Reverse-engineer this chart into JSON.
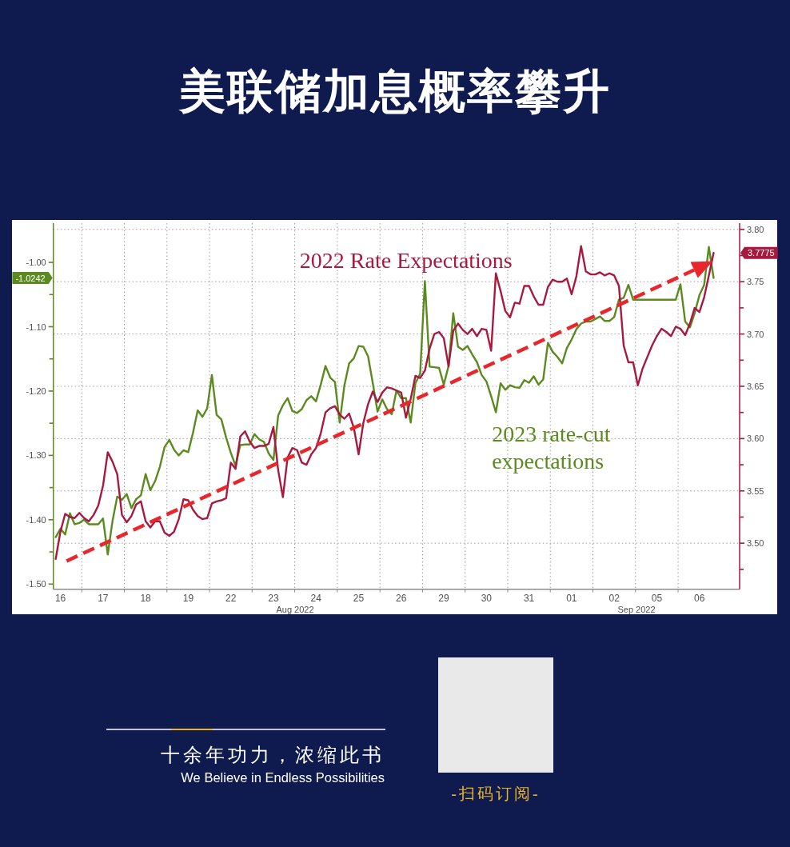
{
  "chart_data": {
    "type": "line",
    "title": "美联储加息概率攀升",
    "categories": [
      null,
      "16",
      null,
      null,
      null,
      null,
      null,
      null,
      null,
      null,
      "17",
      null,
      null,
      null,
      null,
      null,
      null,
      null,
      null,
      "18",
      null,
      null,
      null,
      null,
      null,
      null,
      null,
      null,
      "19",
      null,
      null,
      null,
      null,
      null,
      null,
      null,
      null,
      "22",
      null,
      null,
      null,
      null,
      null,
      null,
      null,
      null,
      "23",
      null,
      null,
      null,
      null,
      null,
      null,
      null,
      null,
      "24",
      null,
      null,
      null,
      null,
      null,
      null,
      null,
      null,
      "25",
      null,
      null,
      null,
      null,
      null,
      null,
      null,
      null,
      "26",
      null,
      null,
      null,
      null,
      null,
      null,
      null,
      null,
      "29",
      null,
      null,
      null,
      null,
      null,
      null,
      null,
      null,
      "30",
      null,
      null,
      null,
      null,
      null,
      null,
      null,
      null,
      "31",
      null,
      null,
      null,
      null,
      null,
      null,
      null,
      null,
      "01",
      null,
      null,
      null,
      null,
      null,
      null,
      null,
      null,
      "02",
      null,
      null,
      null,
      null,
      null,
      null,
      null,
      null,
      "05",
      null,
      null,
      null,
      null,
      null,
      null,
      null,
      null,
      "06",
      null,
      null,
      null,
      null,
      null,
      null,
      null,
      null
    ],
    "ylim": [
      -1.508,
      -0.939
    ],
    "yticks": [
      {
        "value": -1.5,
        "label": "-1.50"
      },
      {
        "value": -1.45,
        "label": null
      },
      {
        "value": -1.4,
        "label": "-1.40"
      },
      {
        "value": -1.35,
        "label": null
      },
      {
        "value": -1.3,
        "label": "-1.30"
      },
      {
        "value": -1.25,
        "label": null
      },
      {
        "value": -1.2,
        "label": "-1.20"
      },
      {
        "value": -1.15,
        "label": null
      },
      {
        "value": -1.1,
        "label": "-1.10"
      },
      {
        "value": -1.05,
        "label": null
      },
      {
        "value": -1.0,
        "label": "-1.00"
      }
    ],
    "y2lim": [
      3.456,
      3.806
    ],
    "y2ticks": [
      {
        "value": 3.475,
        "label": null
      },
      {
        "value": 3.5,
        "label": "3.50"
      },
      {
        "value": 3.525,
        "label": null
      },
      3.55,
      {
        "value": 3.575,
        "label": null
      },
      {
        "value": 3.6,
        "label": "3.60"
      },
      {
        "value": 3.625,
        "label": null
      },
      3.65,
      {
        "value": 3.675,
        "label": null
      },
      {
        "value": 3.7,
        "label": "3.70"
      },
      {
        "value": 3.725,
        "label": null
      },
      3.75,
      {
        "value": 3.775,
        "label": null
      },
      {
        "value": 3.8,
        "label": "3.80"
      }
    ],
    "grid": true,
    "series": [
      {
        "name": "2023 rate-cut expectations",
        "color": "#5b8a1e",
        "values": [
          -1.427,
          -1.414,
          -1.423,
          -1.39,
          -1.407,
          -1.405,
          -1.4,
          -1.407,
          -1.407,
          -1.407,
          -1.398,
          -1.454,
          -1.402,
          -1.364,
          -1.369,
          -1.36,
          -1.382,
          -1.368,
          -1.362,
          -1.329,
          -1.354,
          -1.34,
          -1.318,
          -1.287,
          -1.276,
          -1.291,
          -1.3,
          -1.292,
          -1.295,
          -1.265,
          -1.23,
          -1.24,
          -1.227,
          -1.175,
          -1.237,
          -1.244,
          -1.272,
          -1.296,
          -1.316,
          -1.284,
          -1.283,
          -1.283,
          -1.267,
          -1.275,
          -1.279,
          -1.297,
          -1.307,
          -1.238,
          -1.222,
          -1.211,
          -1.231,
          -1.234,
          -1.228,
          -1.214,
          -1.208,
          -1.216,
          -1.19,
          -1.161,
          -1.179,
          -1.186,
          -1.249,
          -1.191,
          -1.157,
          -1.149,
          -1.13,
          -1.131,
          -1.146,
          -1.188,
          -1.232,
          -1.213,
          -1.228,
          -1.236,
          -1.199,
          -1.211,
          -1.211,
          -1.249,
          -1.188,
          -1.173,
          -1.029,
          -1.162,
          -1.163,
          -1.164,
          -1.19,
          -1.161,
          -1.079,
          -1.131,
          -1.136,
          -1.13,
          -1.143,
          -1.155,
          -1.175,
          -1.185,
          -1.208,
          -1.233,
          -1.188,
          -1.198,
          -1.191,
          -1.194,
          -1.195,
          -1.183,
          -1.187,
          -1.177,
          -1.19,
          -1.182,
          -1.125,
          -1.139,
          -1.147,
          -1.157,
          -1.133,
          -1.12,
          -1.104,
          -1.095,
          -1.092,
          -1.092,
          -1.088,
          -1.084,
          -1.091,
          -1.091,
          -1.085,
          -1.058,
          -1.055,
          -1.035,
          -1.058,
          -1.058,
          -1.058,
          -1.058,
          -1.058,
          -1.058,
          -1.058,
          -1.058,
          -1.058,
          -1.058,
          -1.034,
          -1.092,
          -1.101,
          -1.079,
          -1.051,
          -1.035,
          -0.976,
          -1.0242,
          null,
          null,
          null,
          null,
          null
        ]
      },
      {
        "name": "2022 Rate Expectations",
        "color": "#a8193f",
        "axis": "y2",
        "values": [
          3.485,
          3.511,
          3.528,
          3.525,
          3.524,
          3.529,
          3.524,
          3.521,
          3.527,
          3.536,
          3.555,
          3.587,
          3.578,
          3.566,
          3.527,
          3.52,
          3.526,
          3.537,
          3.54,
          3.521,
          3.515,
          3.521,
          3.521,
          3.51,
          3.507,
          3.511,
          3.523,
          3.542,
          3.541,
          3.532,
          3.526,
          3.523,
          3.524,
          3.538,
          3.54,
          3.541,
          3.543,
          3.577,
          3.571,
          3.602,
          3.607,
          3.597,
          3.591,
          3.593,
          3.593,
          3.595,
          3.611,
          3.57,
          3.544,
          3.582,
          3.591,
          3.589,
          3.577,
          3.575,
          3.585,
          3.591,
          3.605,
          3.625,
          3.629,
          3.631,
          3.623,
          3.619,
          3.624,
          3.61,
          3.585,
          3.615,
          3.633,
          3.645,
          3.635,
          3.644,
          3.649,
          3.648,
          3.646,
          3.644,
          3.62,
          3.638,
          3.66,
          3.658,
          3.665,
          3.686,
          3.7,
          3.702,
          3.696,
          3.669,
          3.703,
          3.71,
          3.704,
          3.7,
          3.705,
          3.698,
          3.705,
          3.704,
          3.684,
          3.758,
          3.741,
          3.722,
          3.716,
          3.73,
          3.729,
          3.746,
          3.746,
          3.736,
          3.728,
          3.728,
          3.745,
          3.752,
          3.75,
          3.75,
          3.753,
          3.738,
          3.755,
          3.784,
          3.76,
          3.757,
          3.757,
          3.759,
          3.756,
          3.758,
          3.756,
          3.746,
          3.689,
          3.673,
          3.673,
          3.651,
          3.667,
          3.678,
          3.689,
          3.698,
          3.705,
          3.702,
          3.698,
          3.707,
          3.705,
          3.699,
          3.71,
          3.725,
          3.721,
          3.735,
          3.756,
          3.7775,
          null,
          null,
          null,
          null,
          null
        ]
      }
    ],
    "annotations": [
      "3.7775",
      "-1.0242",
      "Aug 2022",
      "Sep 2022",
      "十余年功力，浓缩此书",
      "We Believe in Endless Possibilities",
      "-扫码订阅-"
    ]
  }
}
